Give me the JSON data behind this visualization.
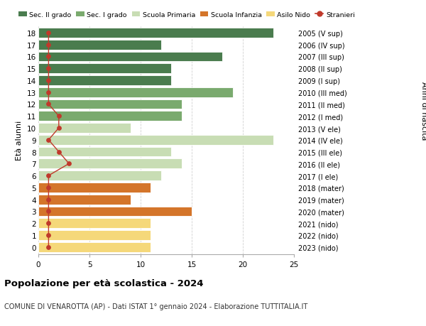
{
  "ages": [
    18,
    17,
    16,
    15,
    14,
    13,
    12,
    11,
    10,
    9,
    8,
    7,
    6,
    5,
    4,
    3,
    2,
    1,
    0
  ],
  "bar_values": [
    23,
    12,
    18,
    13,
    13,
    19,
    14,
    14,
    9,
    23,
    13,
    14,
    12,
    11,
    9,
    15,
    11,
    11,
    11
  ],
  "bar_colors": [
    "#4a7c4e",
    "#4a7c4e",
    "#4a7c4e",
    "#4a7c4e",
    "#4a7c4e",
    "#7aaa6e",
    "#7aaa6e",
    "#7aaa6e",
    "#c8ddb4",
    "#c8ddb4",
    "#c8ddb4",
    "#c8ddb4",
    "#c8ddb4",
    "#d4752a",
    "#d4752a",
    "#d4752a",
    "#f5d87a",
    "#f5d87a",
    "#f5d87a"
  ],
  "stranieri_values": [
    1,
    1,
    1,
    1,
    1,
    1,
    1,
    2,
    2,
    1,
    2,
    3,
    1,
    1,
    1,
    1,
    1,
    1,
    1
  ],
  "right_labels": [
    "2005 (V sup)",
    "2006 (IV sup)",
    "2007 (III sup)",
    "2008 (II sup)",
    "2009 (I sup)",
    "2010 (III med)",
    "2011 (II med)",
    "2012 (I med)",
    "2013 (V ele)",
    "2014 (IV ele)",
    "2015 (III ele)",
    "2016 (II ele)",
    "2017 (I ele)",
    "2018 (mater)",
    "2019 (mater)",
    "2020 (mater)",
    "2021 (nido)",
    "2022 (nido)",
    "2023 (nido)"
  ],
  "legend_labels": [
    "Sec. II grado",
    "Sec. I grado",
    "Scuola Primaria",
    "Scuola Infanzia",
    "Asilo Nido",
    "Stranieri"
  ],
  "legend_colors": [
    "#4a7c4e",
    "#7aaa6e",
    "#c8ddb4",
    "#d4752a",
    "#f5d87a",
    "#c0392b"
  ],
  "ylabel_left": "Età alunni",
  "ylabel_right": "Anni di nascita",
  "title": "Popolazione per età scolastica - 2024",
  "subtitle": "COMUNE DI VENAROTTA (AP) - Dati ISTAT 1° gennaio 2024 - Elaborazione TUTTITALIA.IT",
  "xlim": [
    0,
    25
  ],
  "xticks": [
    0,
    5,
    10,
    15,
    20,
    25
  ],
  "stranieri_color": "#c0392b",
  "bar_height": 0.82,
  "background_color": "#ffffff",
  "grid_color": "#cccccc"
}
